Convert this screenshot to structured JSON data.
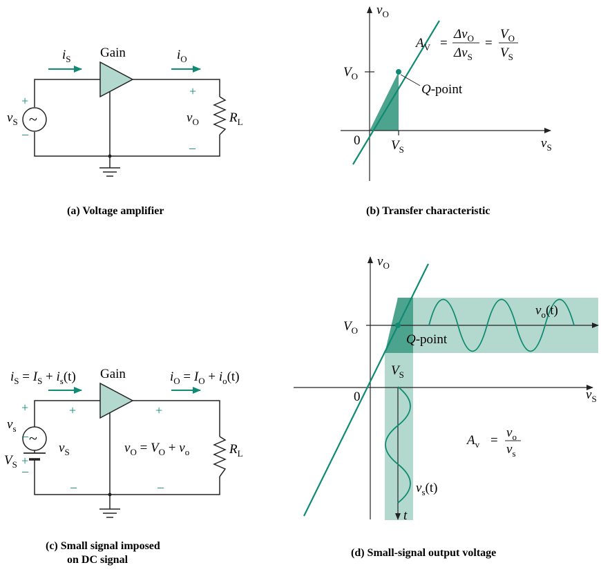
{
  "colors": {
    "accent": "#0f8a73",
    "shade": "#4da48e",
    "shade_light": "#b3d9ce",
    "wire": "#222222"
  },
  "panel_a": {
    "caption": "(a)  Voltage amplifier",
    "gain": "Gain",
    "source_var": "v",
    "source_sub": "S",
    "in_current_var": "i",
    "in_current_sub": "S",
    "out_current_var": "i",
    "out_current_sub": "O",
    "out_voltage_var": "v",
    "out_voltage_sub": "O",
    "load_var": "R",
    "load_sub": "L",
    "plus": "+",
    "minus": "–",
    "tilde": "~"
  },
  "panel_b": {
    "caption": "(b)  Transfer characteristic",
    "y_axis_var": "v",
    "y_axis_sub": "O",
    "x_axis_var": "v",
    "x_axis_sub": "S",
    "origin": "0",
    "vo_tick_var": "V",
    "vo_tick_sub": "O",
    "vs_tick_var": "V",
    "vs_tick_sub": "S",
    "q_var": "Q",
    "q_suffix": "-point",
    "gain_var": "A",
    "gain_sub": "V",
    "eq_sign": "=",
    "frac1_num": "Δv",
    "frac1_num_sub": "O",
    "frac1_den": "Δv",
    "frac1_den_sub": "S",
    "frac2_num": "V",
    "frac2_num_sub": "O",
    "frac2_den": "V",
    "frac2_den_sub": "S"
  },
  "panel_c": {
    "caption_line1": "(c)  Small signal imposed",
    "caption_line2": "on DC signal",
    "gain": "Gain",
    "in_current_lhs_var": "i",
    "in_current_lhs_sub": "S",
    "in_current_eq": " = ",
    "in_current_dc_var": "I",
    "in_current_dc_sub": "S",
    "in_current_plus": " + ",
    "in_current_ac_var": "i",
    "in_current_ac_sub": "s",
    "in_current_ac_arg": "(t)",
    "out_current_lhs_var": "i",
    "out_current_lhs_sub": "O",
    "out_current_eq": " = ",
    "out_current_dc_var": "I",
    "out_current_dc_sub": "O",
    "out_current_plus": " + ",
    "out_current_ac_var": "i",
    "out_current_ac_sub": "o",
    "out_current_ac_arg": "(t)",
    "ac_source_var": "v",
    "ac_source_sub": "s",
    "dc_source_var": "V",
    "dc_source_sub": "S",
    "in_voltage_var": "v",
    "in_voltage_sub": "S",
    "out_voltage_lhs_var": "v",
    "out_voltage_lhs_sub": "O",
    "out_voltage_eq": " = ",
    "out_voltage_dc_var": "V",
    "out_voltage_dc_sub": "O",
    "out_voltage_plus": " + ",
    "out_voltage_ac_var": "v",
    "out_voltage_ac_sub": "o",
    "load_var": "R",
    "load_sub": "L",
    "plus": "+",
    "minus": "–",
    "tilde": "~"
  },
  "panel_d": {
    "caption": "(d)  Small-signal output voltage",
    "y_axis_var": "v",
    "y_axis_sub": "O",
    "x_axis_var": "v",
    "x_axis_sub": "S",
    "origin": "0",
    "vo_tick_var": "V",
    "vo_tick_sub": "O",
    "vs_tick_var": "V",
    "vs_tick_sub": "S",
    "q_var": "Q",
    "q_suffix": "-point",
    "out_wave_var": "v",
    "out_wave_sub": "o",
    "out_wave_arg": "(t)",
    "in_wave_var": "v",
    "in_wave_sub": "s",
    "in_wave_arg": "(t)",
    "time_var": "t",
    "gain_var": "A",
    "gain_sub": "v",
    "eq_sign": "=",
    "frac_num": "v",
    "frac_num_sub": "o",
    "frac_den": "v",
    "frac_den_sub": "s"
  }
}
